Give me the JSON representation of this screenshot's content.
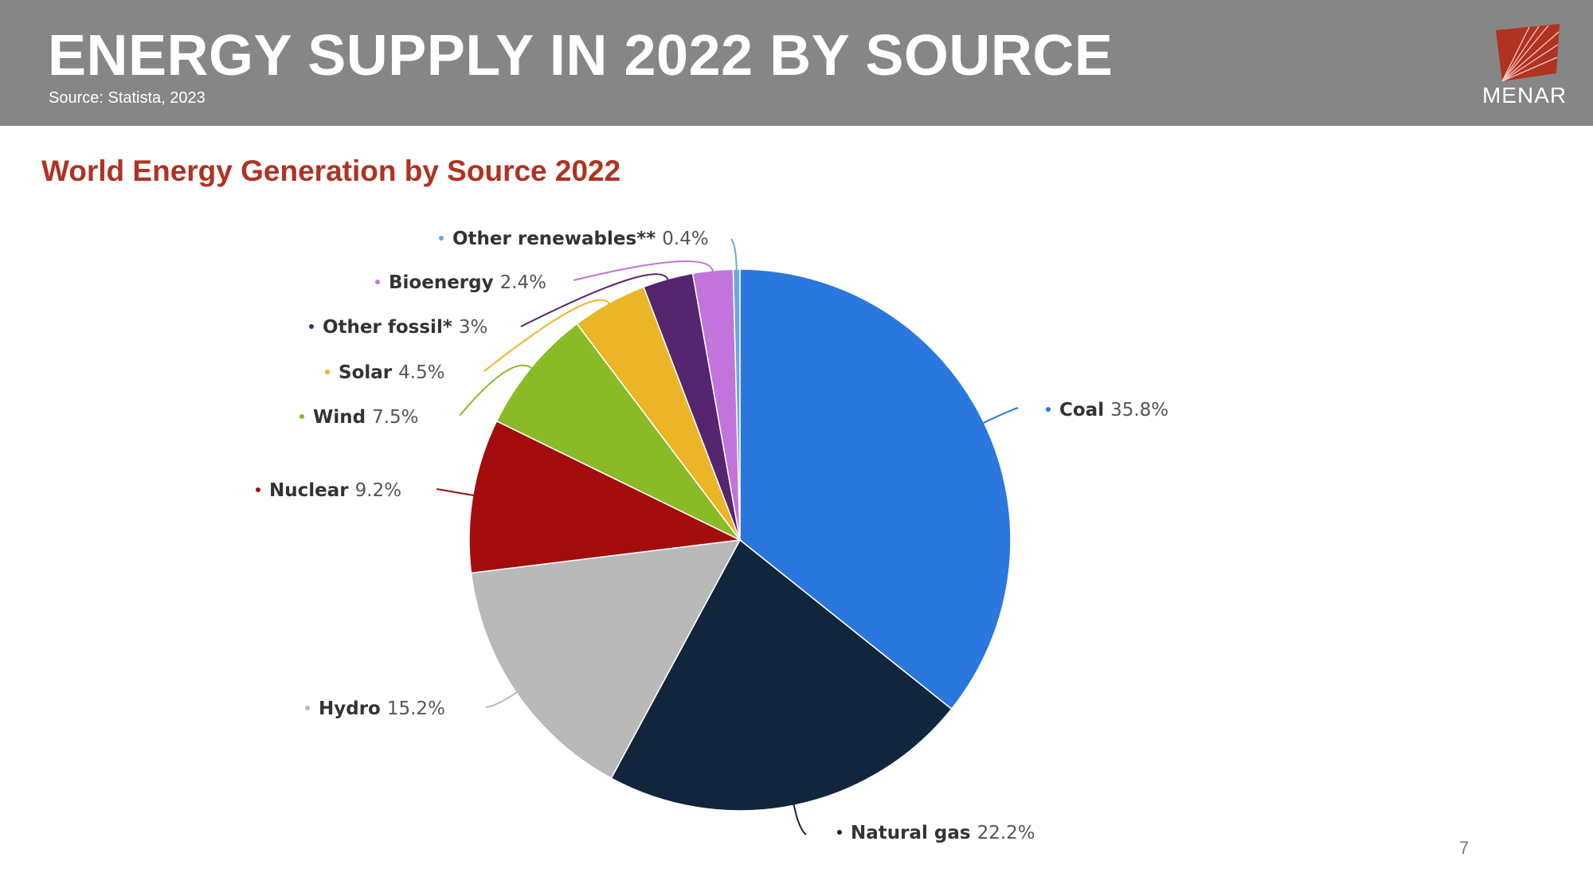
{
  "header": {
    "title": "ENERGY SUPPLY IN 2022 BY SOURCE",
    "source": "Source: Statista, 2023",
    "logo_text": "MENAR"
  },
  "footer": {
    "page_number": "7"
  },
  "colors": {
    "header_bg": "#868686",
    "accent": "#b03222",
    "logo": "#b03222"
  },
  "chart_data": {
    "type": "pie",
    "title": "World Energy Generation by Source 2022",
    "unit": "%",
    "slices": [
      {
        "label": "Coal",
        "value": 35.8,
        "display": "35.8%",
        "color": "#2a77dd"
      },
      {
        "label": "Natural gas",
        "value": 22.2,
        "display": "22.2%",
        "color": "#11263d"
      },
      {
        "label": "Hydro",
        "value": 15.2,
        "display": "15.2%",
        "color": "#b9b9b9"
      },
      {
        "label": "Nuclear",
        "value": 9.2,
        "display": "9.2%",
        "color": "#a40d0d"
      },
      {
        "label": "Wind",
        "value": 7.5,
        "display": "7.5%",
        "color": "#8aba26"
      },
      {
        "label": "Solar",
        "value": 4.5,
        "display": "4.5%",
        "color": "#ebb527"
      },
      {
        "label": "Other fossil*",
        "value": 3,
        "display": "3%",
        "color": "#55256f"
      },
      {
        "label": "Bioenergy",
        "value": 2.4,
        "display": "2.4%",
        "color": "#c274dc"
      },
      {
        "label": "Other renewables**",
        "value": 0.4,
        "display": "0.4%",
        "color": "#6ba8e0"
      }
    ]
  }
}
